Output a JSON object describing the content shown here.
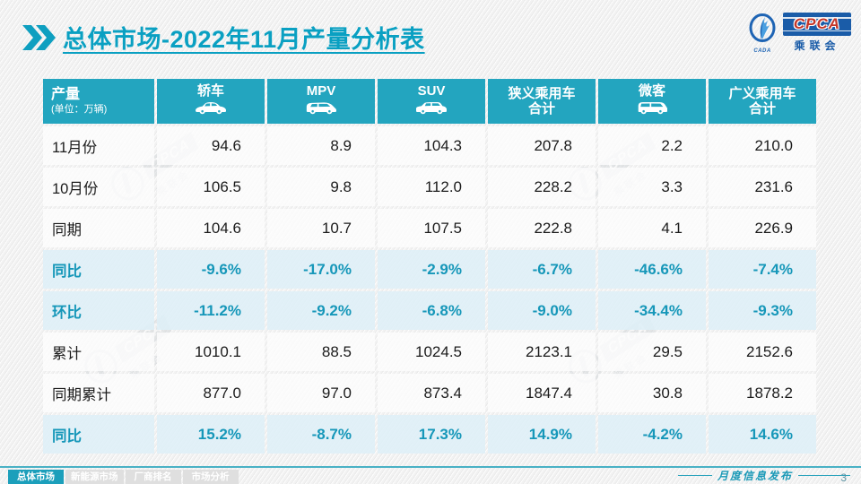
{
  "title": {
    "text": "总体市场-2022年11月产量分析表"
  },
  "logo": {
    "cpca": "CPCA",
    "sub": "乘联会",
    "emblem_caption": "CADA"
  },
  "table": {
    "header": {
      "col0_title": "产量",
      "col0_sub": "(单位：万辆)",
      "columns": [
        {
          "label": "轿车",
          "line2": "",
          "icon": "sedan-icon"
        },
        {
          "label": "MPV",
          "line2": "",
          "icon": "mpv-icon"
        },
        {
          "label": "SUV",
          "line2": "",
          "icon": "suv-icon"
        },
        {
          "label": "狭义乘用车",
          "line2": "合计",
          "icon": ""
        },
        {
          "label": "微客",
          "line2": "",
          "icon": "microvan-icon"
        },
        {
          "label": "广义乘用车",
          "line2": "合计",
          "icon": ""
        }
      ]
    },
    "rows": [
      {
        "label": "11月份",
        "type": "normal",
        "values": [
          "94.6",
          "8.9",
          "104.3",
          "207.8",
          "2.2",
          "210.0"
        ]
      },
      {
        "label": "10月份",
        "type": "normal",
        "values": [
          "106.5",
          "9.8",
          "112.0",
          "228.2",
          "3.3",
          "231.6"
        ]
      },
      {
        "label": "同期",
        "type": "normal",
        "values": [
          "104.6",
          "10.7",
          "107.5",
          "222.8",
          "4.1",
          "226.9"
        ]
      },
      {
        "label": "同比",
        "type": "ratio",
        "values": [
          "-9.6%",
          "-17.0%",
          "-2.9%",
          "-6.7%",
          "-46.6%",
          "-7.4%"
        ]
      },
      {
        "label": "环比",
        "type": "ratio",
        "values": [
          "-11.2%",
          "-9.2%",
          "-6.8%",
          "-9.0%",
          "-34.4%",
          "-9.3%"
        ]
      },
      {
        "label": "累计",
        "type": "normal",
        "values": [
          "1010.1",
          "88.5",
          "1024.5",
          "2123.1",
          "29.5",
          "2152.6"
        ]
      },
      {
        "label": "同期累计",
        "type": "normal",
        "values": [
          "877.0",
          "97.0",
          "873.4",
          "1847.4",
          "30.8",
          "1878.2"
        ]
      },
      {
        "label": "同比",
        "type": "ratio",
        "values": [
          "15.2%",
          "-8.7%",
          "17.3%",
          "14.9%",
          "-4.2%",
          "14.6%"
        ]
      }
    ]
  },
  "chart_data": {
    "type": "table",
    "title": "总体市场-2022年11月产量分析表",
    "unit": "万辆",
    "columns": [
      "轿车",
      "MPV",
      "SUV",
      "狭义乘用车合计",
      "微客",
      "广义乘用车合计"
    ],
    "rows": [
      {
        "label": "11月份",
        "values": [
          94.6,
          8.9,
          104.3,
          207.8,
          2.2,
          210.0
        ]
      },
      {
        "label": "10月份",
        "values": [
          106.5,
          9.8,
          112.0,
          228.2,
          3.3,
          231.6
        ]
      },
      {
        "label": "同期",
        "values": [
          104.6,
          10.7,
          107.5,
          222.8,
          4.1,
          226.9
        ]
      },
      {
        "label": "同比",
        "values": [
          "-9.6%",
          "-17.0%",
          "-2.9%",
          "-6.7%",
          "-46.6%",
          "-7.4%"
        ]
      },
      {
        "label": "环比",
        "values": [
          "-11.2%",
          "-9.2%",
          "-6.8%",
          "-9.0%",
          "-34.4%",
          "-9.3%"
        ]
      },
      {
        "label": "累计",
        "values": [
          1010.1,
          88.5,
          1024.5,
          2123.1,
          29.5,
          2152.6
        ]
      },
      {
        "label": "同期累计",
        "values": [
          877.0,
          97.0,
          873.4,
          1847.4,
          30.8,
          1878.2
        ]
      },
      {
        "label": "同比",
        "values": [
          "15.2%",
          "-8.7%",
          "17.3%",
          "14.9%",
          "-4.2%",
          "14.6%"
        ]
      }
    ]
  },
  "watermark": {
    "text": "CPCA",
    "sub": "乘联会"
  },
  "footer": {
    "tabs": [
      {
        "label": "总体市场",
        "active": true
      },
      {
        "label": "新能源市场",
        "active": false
      },
      {
        "label": "厂商排名",
        "active": false
      },
      {
        "label": "市场分析",
        "active": false
      }
    ],
    "publication": "月度信息发布",
    "page": "3"
  },
  "colors": {
    "accent_teal": "#23a5bf",
    "title_teal": "#0aa0c2",
    "ratio_text": "#1697b9",
    "ratio_row_bg": "#deeff7",
    "logo_blue": "#1a5ca8",
    "logo_red": "#c43527"
  }
}
